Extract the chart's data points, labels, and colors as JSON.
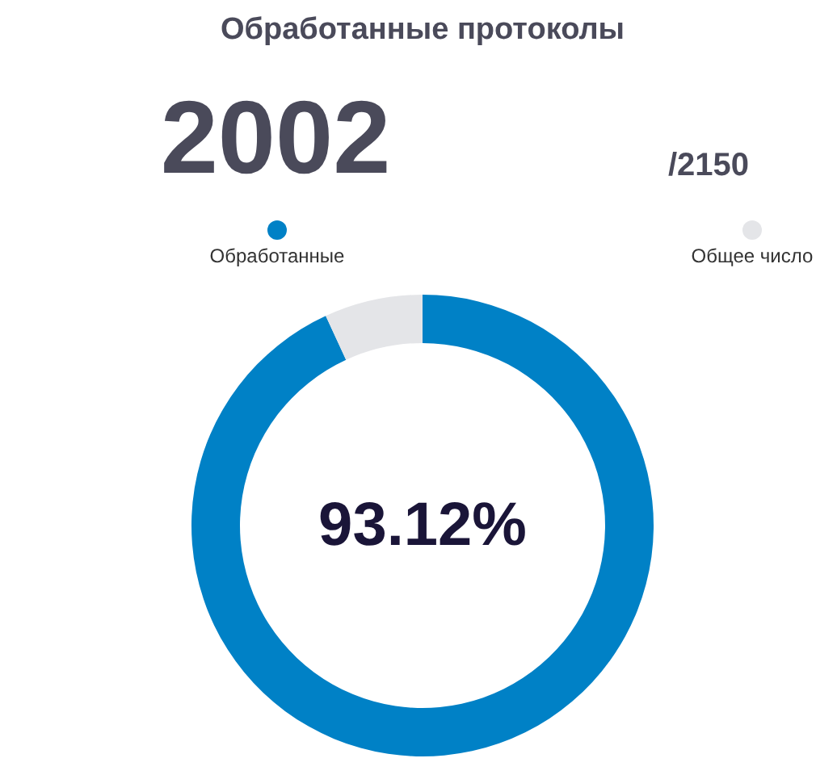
{
  "chart_data": {
    "type": "donut",
    "title": "Обработанные протоколы",
    "categories": [
      "Обработанные",
      "Общее число"
    ],
    "values": [
      93.12,
      6.88
    ],
    "colors": [
      "#0081c6",
      "#e4e5e8"
    ],
    "legend": "top",
    "annotations": [
      "2002",
      "/2150",
      "93.12%"
    ]
  }
}
